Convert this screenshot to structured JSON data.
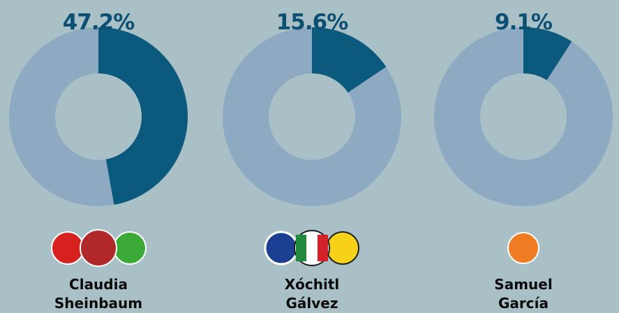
{
  "chart_data": {
    "type": "donut",
    "categories": [
      "Claudia Sheinbaum",
      "Xóchitl Gálvez",
      "Samuel García"
    ],
    "values": [
      47.2,
      15.6,
      9.1
    ],
    "value_labels": [
      "47.2%",
      "15.6%",
      "9.1%"
    ],
    "ylim": [
      0,
      100
    ],
    "color": "#0b5a7e",
    "rest_color": "#8eaac3"
  }
}
